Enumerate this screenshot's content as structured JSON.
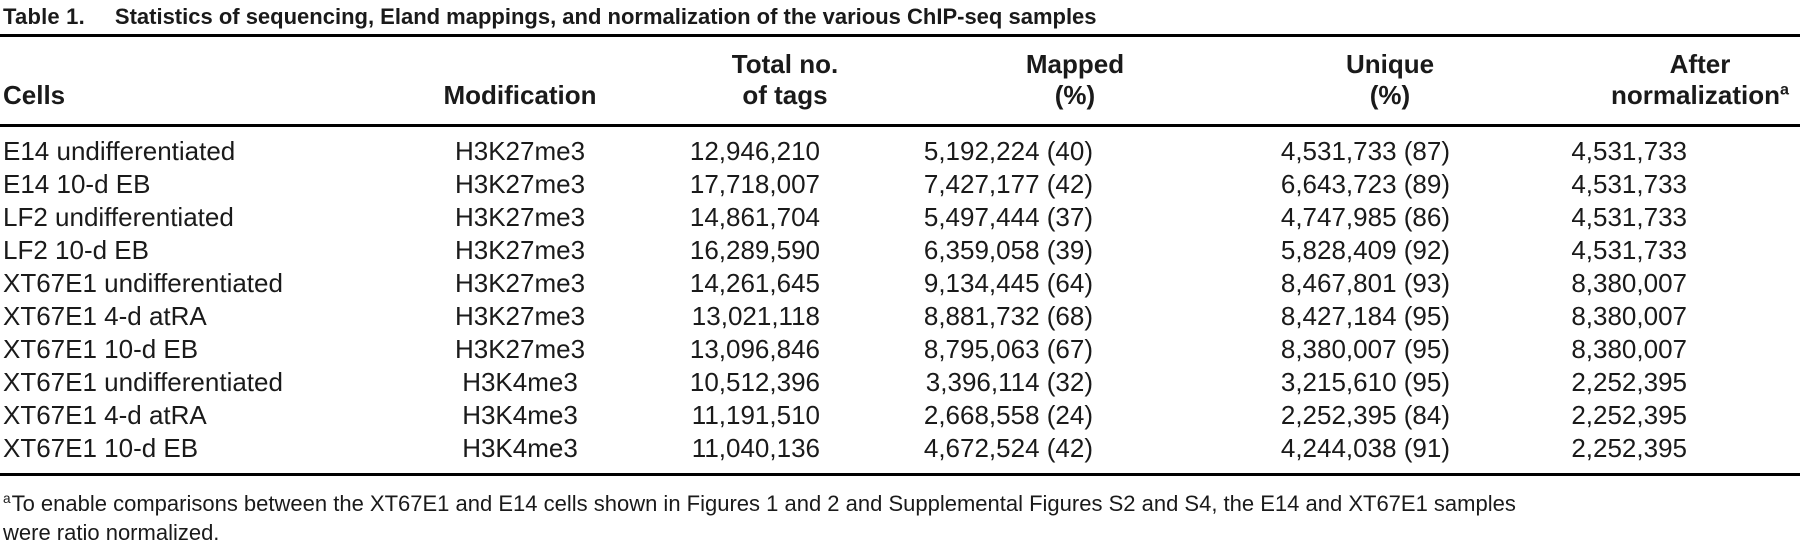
{
  "title": {
    "label": "Table 1.",
    "text": "Statistics of sequencing, Eland mappings, and normalization of the various ChIP-seq samples"
  },
  "table": {
    "columns": [
      {
        "label": "Cells"
      },
      {
        "label": "Modification"
      },
      {
        "line1": "Total no.",
        "line2": "of tags"
      },
      {
        "line1": "Mapped",
        "line2": "(%)"
      },
      {
        "line1": "Unique",
        "line2": "(%)"
      },
      {
        "line1": "After",
        "line2": "normalization",
        "sup": "a"
      }
    ],
    "rows": [
      {
        "cells": [
          "E14 undifferentiated",
          "H3K27me3",
          "12,946,210",
          "5,192,224 (40)",
          "4,531,733 (87)",
          "4,531,733"
        ]
      },
      {
        "cells": [
          "E14 10-d EB",
          "H3K27me3",
          "17,718,007",
          "7,427,177 (42)",
          "6,643,723 (89)",
          "4,531,733"
        ]
      },
      {
        "cells": [
          "LF2 undifferentiated",
          "H3K27me3",
          "14,861,704",
          "5,497,444 (37)",
          "4,747,985 (86)",
          "4,531,733"
        ]
      },
      {
        "cells": [
          "LF2 10-d EB",
          "H3K27me3",
          "16,289,590",
          "6,359,058 (39)",
          "5,828,409 (92)",
          "4,531,733"
        ]
      },
      {
        "cells": [
          "XT67E1 undifferentiated",
          "H3K27me3",
          "14,261,645",
          "9,134,445 (64)",
          "8,467,801 (93)",
          "8,380,007"
        ]
      },
      {
        "cells": [
          "XT67E1 4-d atRA",
          "H3K27me3",
          "13,021,118",
          "8,881,732 (68)",
          "8,427,184 (95)",
          "8,380,007"
        ]
      },
      {
        "cells": [
          "XT67E1 10-d EB",
          "H3K27me3",
          "13,096,846",
          "8,795,063 (67)",
          "8,380,007 (95)",
          "8,380,007"
        ]
      },
      {
        "cells": [
          "XT67E1 undifferentiated",
          "H3K4me3",
          "10,512,396",
          "3,396,114 (32)",
          "3,215,610 (95)",
          "2,252,395"
        ]
      },
      {
        "cells": [
          "XT67E1 4-d atRA",
          "H3K4me3",
          "11,191,510",
          "2,668,558 (24)",
          "2,252,395 (84)",
          "2,252,395"
        ]
      },
      {
        "cells": [
          "XT67E1 10-d EB",
          "H3K4me3",
          "11,040,136",
          "4,672,524 (42)",
          "4,244,038 (91)",
          "2,252,395"
        ]
      }
    ]
  },
  "footnote": {
    "marker": "a",
    "line1": "To enable comparisons between the XT67E1 and E14 cells shown in Figures 1 and 2 and Supplemental Figures S2 and S4, the E14 and XT67E1 samples",
    "line2": "were ratio normalized."
  }
}
